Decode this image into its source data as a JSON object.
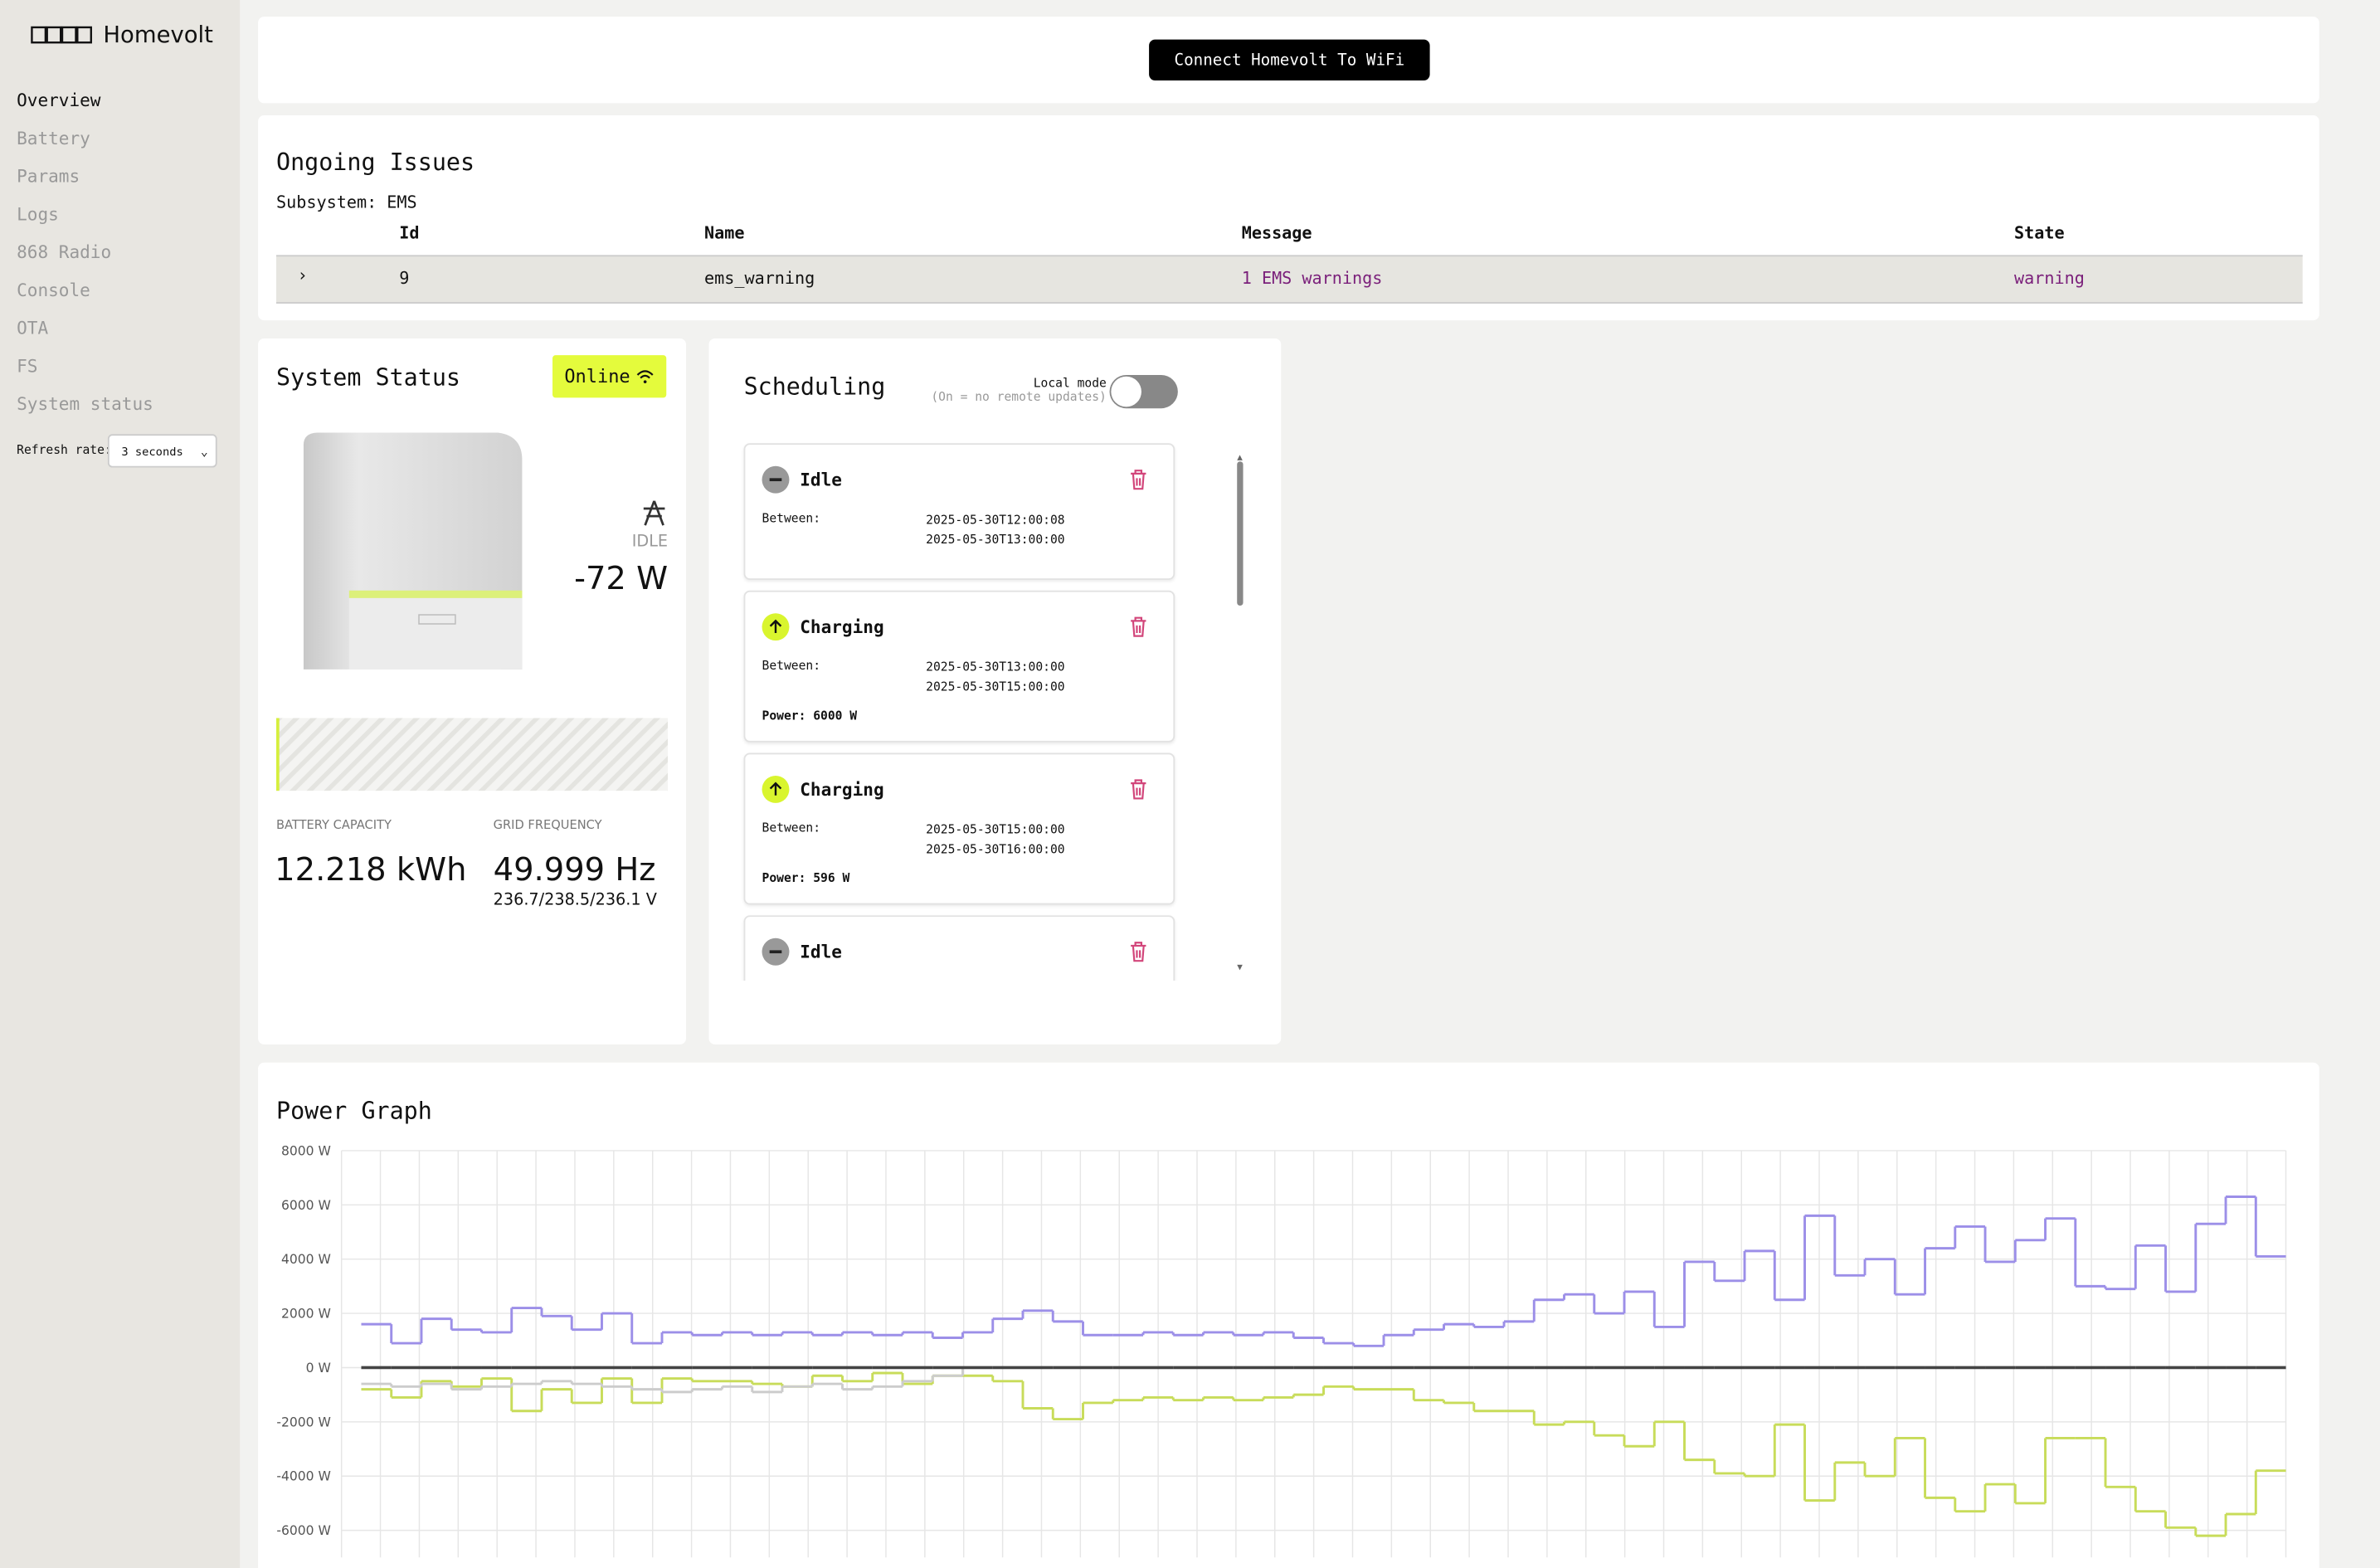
{
  "sidebar": {
    "brand": "Homevolt",
    "nav": [
      "Overview",
      "Battery",
      "Params",
      "Logs",
      "868 Radio",
      "Console",
      "OTA",
      "FS",
      "System status"
    ],
    "refresh_label": "Refresh rate:",
    "refresh_value": "3 seconds"
  },
  "header": {
    "button": "Connect Homevolt To WiFi"
  },
  "issues": {
    "title": "Ongoing Issues",
    "subsystem": "Subsystem: EMS",
    "columns": [
      "Id",
      "Name",
      "Message",
      "State"
    ],
    "rows": [
      [
        9,
        "ems_warning",
        "1 EMS warnings",
        "warning"
      ]
    ]
  },
  "system_status": {
    "title": "System Status",
    "badge": "Online",
    "state": "IDLE",
    "power": "-72 W",
    "capacity_label": "BATTERY CAPACITY",
    "capacity": "12.218 kWh",
    "frequency_label": "GRID FREQUENCY",
    "frequency": "49.999 Hz",
    "voltages": "236.7/238.5/236.1 V"
  },
  "scheduling": {
    "title": "Scheduling",
    "local_mode_label": "Local mode",
    "local_mode_hint": "(On = no remote updates)",
    "items": [
      {
        "status": "Idle",
        "between_label": "Between:",
        "start": "2025-05-30T12:00:08",
        "end": "2025-05-30T13:00:00"
      },
      {
        "status": "Charging",
        "between_label": "Between:",
        "start": "2025-05-30T13:00:00",
        "end": "2025-05-30T15:00:00",
        "power": "Power: 6000 W"
      },
      {
        "status": "Charging",
        "between_label": "Between:",
        "start": "2025-05-30T15:00:00",
        "end": "2025-05-30T16:00:00",
        "power": "Power: 596 W"
      },
      {
        "status": "Idle"
      }
    ]
  },
  "chart_data": {
    "type": "step",
    "title": "Power Graph",
    "ylim": [
      -7000,
      8000
    ],
    "yticks": [
      {
        "value": 8000,
        "label": "8000 W"
      },
      {
        "value": 6000,
        "label": "6000 W"
      },
      {
        "value": 4000,
        "label": "4000 W"
      },
      {
        "value": 2000,
        "label": "2000 W"
      },
      {
        "value": 0,
        "label": "0 W"
      },
      {
        "value": -2000,
        "label": "-2000 W"
      },
      {
        "value": -4000,
        "label": "-4000 W"
      },
      {
        "value": -6000,
        "label": "-6000 W"
      }
    ],
    "grid": true,
    "series": [
      {
        "color": "#9c8fe8",
        "values": [
          1600,
          900,
          1800,
          1400,
          1300,
          2200,
          1900,
          1400,
          2000,
          900,
          1300,
          1200,
          1300,
          1200,
          1300,
          1200,
          1300,
          1200,
          1300,
          1100,
          1300,
          1800,
          2100,
          1700,
          1200,
          1200,
          1300,
          1200,
          1300,
          1200,
          1300,
          1100,
          900,
          800,
          1200,
          1400,
          1600,
          1500,
          1700,
          2500,
          2700,
          2000,
          2800,
          1500,
          3900,
          3200,
          4300,
          2500,
          5600,
          3400,
          4000,
          2700,
          4400,
          5200,
          3900,
          4700,
          5500,
          3000,
          2900,
          4500,
          2800,
          5300,
          6300,
          4100
        ]
      },
      {
        "color": "#c8dc5a",
        "values": [
          -800,
          -1100,
          -500,
          -700,
          -400,
          -1600,
          -800,
          -1300,
          -400,
          -1300,
          -400,
          -500,
          -500,
          -600,
          -700,
          -300,
          -500,
          -200,
          -600,
          -300,
          -300,
          -500,
          -1500,
          -1900,
          -1300,
          -1200,
          -1100,
          -1200,
          -1100,
          -1200,
          -1100,
          -1000,
          -700,
          -800,
          -800,
          -1200,
          -1300,
          -1600,
          -1600,
          -2100,
          -2000,
          -2500,
          -2900,
          -2000,
          -3400,
          -3900,
          -4000,
          -2100,
          -4900,
          -3500,
          -4000,
          -2600,
          -4800,
          -5300,
          -4300,
          -5000,
          -2600,
          -2600,
          -4400,
          -5300,
          -5900,
          -6200,
          -5400,
          -3800
        ]
      },
      {
        "color": "#cccccc",
        "values": [
          -600,
          -700,
          -600,
          -800,
          -700,
          -600,
          -500,
          -600,
          -700,
          -800,
          -900,
          -800,
          -700,
          -900,
          -700,
          -600,
          -800,
          -700,
          -500,
          -300,
          0,
          0,
          0,
          0,
          0,
          0,
          0,
          0,
          0,
          0,
          0,
          0,
          0,
          0,
          0,
          0,
          0,
          0,
          0,
          0,
          0,
          0,
          0,
          0,
          0,
          0,
          0,
          0,
          0,
          0,
          0,
          0,
          0,
          0,
          0,
          0,
          0,
          0,
          0,
          0,
          0,
          0,
          0,
          0
        ]
      },
      {
        "color": "#444444",
        "values": [
          0,
          0,
          0,
          0,
          0,
          0,
          0,
          0,
          0,
          0,
          0,
          0,
          0,
          0,
          0,
          0,
          0,
          0,
          0,
          0,
          0,
          0,
          0,
          0,
          0,
          0,
          0,
          0,
          0,
          0,
          0,
          0,
          0,
          0,
          0,
          0,
          0,
          0,
          0,
          0,
          0,
          0,
          0,
          0,
          0,
          0,
          0,
          0,
          0,
          0,
          0,
          0,
          0,
          0,
          0,
          0,
          0,
          0,
          0,
          0,
          0,
          0,
          0,
          0
        ]
      }
    ]
  }
}
